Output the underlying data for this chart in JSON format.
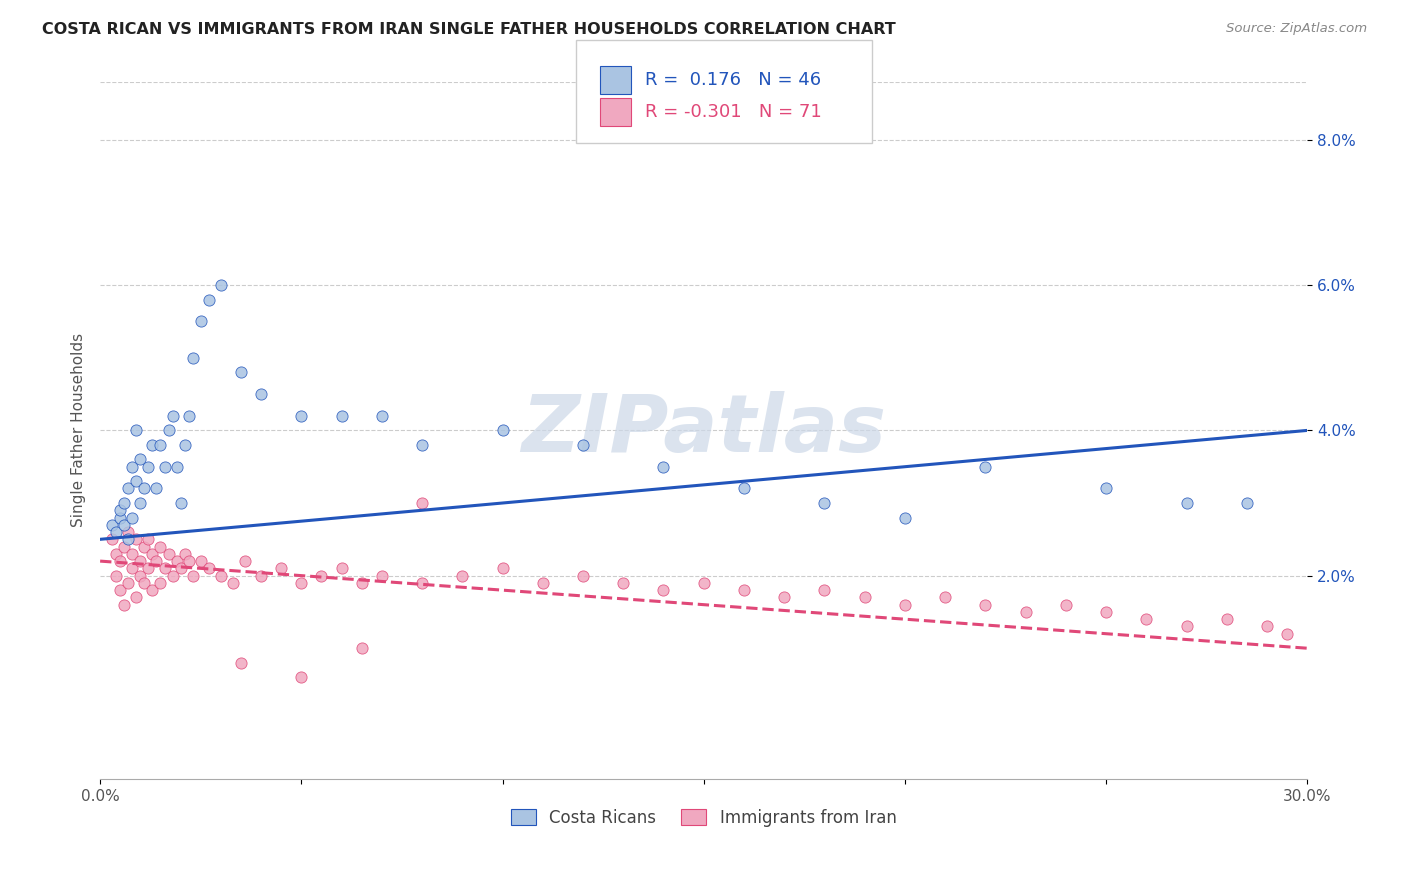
{
  "title": "COSTA RICAN VS IMMIGRANTS FROM IRAN SINGLE FATHER HOUSEHOLDS CORRELATION CHART",
  "source": "Source: ZipAtlas.com",
  "ylabel": "Single Father Households",
  "ytick_labels": [
    "2.0%",
    "4.0%",
    "6.0%",
    "8.0%"
  ],
  "ytick_values": [
    0.02,
    0.04,
    0.06,
    0.08
  ],
  "xmin": 0.0,
  "xmax": 0.3,
  "ymin": -0.008,
  "ymax": 0.088,
  "legend_label1": "Costa Ricans",
  "legend_label2": "Immigrants from Iran",
  "R1": 0.176,
  "N1": 46,
  "R2": -0.301,
  "N2": 71,
  "color_blue": "#aac4e2",
  "color_pink": "#f0a8c0",
  "line_blue": "#2255bb",
  "line_pink": "#e04878",
  "watermark_color": "#ccd8e8",
  "blue_scatter_x": [
    0.003,
    0.004,
    0.005,
    0.005,
    0.006,
    0.006,
    0.007,
    0.007,
    0.008,
    0.008,
    0.009,
    0.009,
    0.01,
    0.01,
    0.011,
    0.012,
    0.013,
    0.014,
    0.015,
    0.016,
    0.017,
    0.018,
    0.019,
    0.02,
    0.021,
    0.022,
    0.023,
    0.025,
    0.027,
    0.03,
    0.035,
    0.04,
    0.05,
    0.06,
    0.07,
    0.08,
    0.1,
    0.12,
    0.14,
    0.16,
    0.18,
    0.2,
    0.22,
    0.25,
    0.27,
    0.285
  ],
  "blue_scatter_y": [
    0.027,
    0.026,
    0.028,
    0.029,
    0.03,
    0.027,
    0.032,
    0.025,
    0.035,
    0.028,
    0.04,
    0.033,
    0.03,
    0.036,
    0.032,
    0.035,
    0.038,
    0.032,
    0.038,
    0.035,
    0.04,
    0.042,
    0.035,
    0.03,
    0.038,
    0.042,
    0.05,
    0.055,
    0.058,
    0.06,
    0.048,
    0.045,
    0.042,
    0.042,
    0.042,
    0.038,
    0.04,
    0.038,
    0.035,
    0.032,
    0.03,
    0.028,
    0.035,
    0.032,
    0.03,
    0.03
  ],
  "pink_scatter_x": [
    0.003,
    0.004,
    0.004,
    0.005,
    0.005,
    0.006,
    0.006,
    0.007,
    0.007,
    0.008,
    0.008,
    0.009,
    0.009,
    0.01,
    0.01,
    0.011,
    0.011,
    0.012,
    0.012,
    0.013,
    0.013,
    0.014,
    0.015,
    0.015,
    0.016,
    0.017,
    0.018,
    0.019,
    0.02,
    0.021,
    0.022,
    0.023,
    0.025,
    0.027,
    0.03,
    0.033,
    0.036,
    0.04,
    0.045,
    0.05,
    0.055,
    0.06,
    0.065,
    0.07,
    0.08,
    0.09,
    0.1,
    0.11,
    0.12,
    0.13,
    0.14,
    0.15,
    0.16,
    0.17,
    0.18,
    0.19,
    0.2,
    0.21,
    0.22,
    0.23,
    0.24,
    0.25,
    0.26,
    0.27,
    0.28,
    0.29,
    0.295,
    0.035,
    0.05,
    0.065,
    0.08
  ],
  "pink_scatter_y": [
    0.025,
    0.02,
    0.023,
    0.018,
    0.022,
    0.016,
    0.024,
    0.019,
    0.026,
    0.021,
    0.023,
    0.017,
    0.025,
    0.02,
    0.022,
    0.024,
    0.019,
    0.021,
    0.025,
    0.018,
    0.023,
    0.022,
    0.024,
    0.019,
    0.021,
    0.023,
    0.02,
    0.022,
    0.021,
    0.023,
    0.022,
    0.02,
    0.022,
    0.021,
    0.02,
    0.019,
    0.022,
    0.02,
    0.021,
    0.019,
    0.02,
    0.021,
    0.019,
    0.02,
    0.019,
    0.02,
    0.021,
    0.019,
    0.02,
    0.019,
    0.018,
    0.019,
    0.018,
    0.017,
    0.018,
    0.017,
    0.016,
    0.017,
    0.016,
    0.015,
    0.016,
    0.015,
    0.014,
    0.013,
    0.014,
    0.013,
    0.012,
    0.008,
    0.006,
    0.01,
    0.03
  ],
  "blue_line_x0": 0.0,
  "blue_line_x1": 0.3,
  "blue_line_y0": 0.025,
  "blue_line_y1": 0.04,
  "pink_line_x0": 0.0,
  "pink_line_x1": 0.3,
  "pink_line_y0": 0.022,
  "pink_line_y1": 0.01
}
